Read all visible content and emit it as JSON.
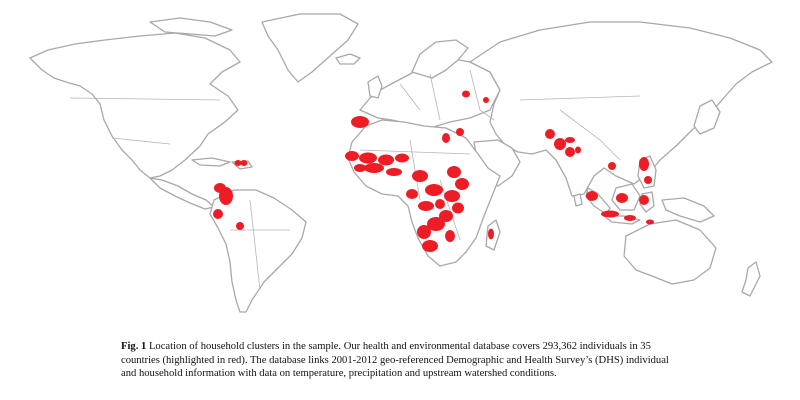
{
  "map": {
    "land_stroke": "#a8a8a8",
    "land_fill": "#ffffff",
    "highlight_color": "#ee1c25",
    "highlighted_regions": [
      "Morocco",
      "West Africa",
      "Central Africa",
      "East Africa",
      "Southern Africa",
      "Madagascar",
      "Egypt",
      "Jordan",
      "Azerbaijan",
      "Pakistan",
      "India",
      "Nepal",
      "Bangladesh",
      "Cambodia",
      "Philippines",
      "Indonesia",
      "Timor-Leste",
      "Haiti",
      "Dominican Republic",
      "Colombia",
      "Peru",
      "Bolivia",
      "Ukraine"
    ]
  },
  "caption": {
    "label": "Fig. 1",
    "text": " Location of household clusters in the sample. Our health and environmental database covers 293,362 individuals in 35 countries (highlighted in red). The database links 2001-2012 geo-referenced Demographic and Health Survey’s (DHS) individual and household information with data on temperature, precipitation and upstream watershed conditions."
  }
}
